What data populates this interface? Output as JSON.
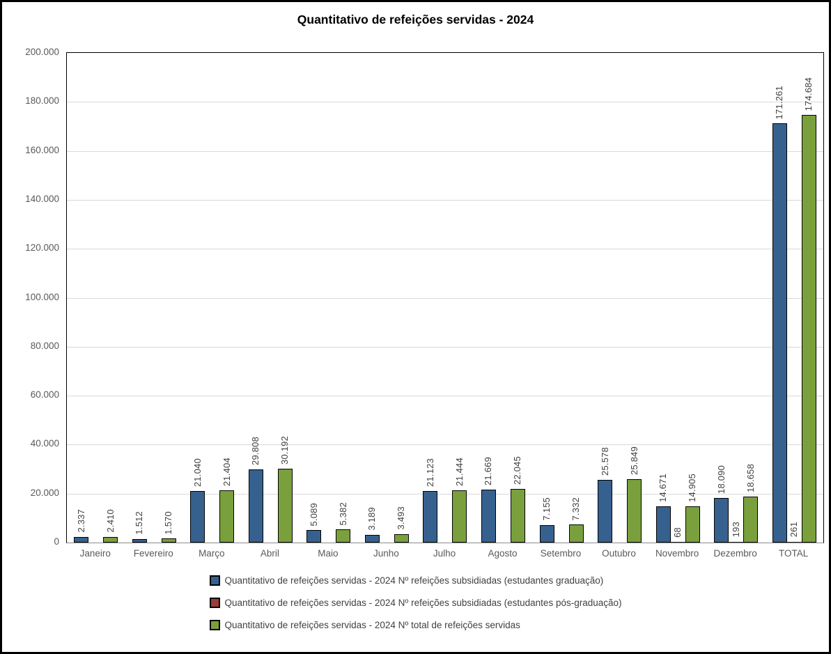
{
  "title": "Quantitativo de refeições servidas - 2024",
  "chart_data": {
    "type": "bar",
    "title": "Quantitativo de refeições servidas - 2024",
    "categories": [
      "Janeiro",
      "Fevereiro",
      "Março",
      "Abril",
      "Maio",
      "Junho",
      "Julho",
      "Agosto",
      "Setembro",
      "Outubro",
      "Novembro",
      "Dezembro",
      "TOTAL"
    ],
    "series": [
      {
        "name": "Quantitativo de refeições servidas - 2024 Nº refeições subsidiadas (estudantes graduação)",
        "color": "#36618F",
        "values": [
          2337,
          1512,
          21040,
          29808,
          5089,
          3189,
          21123,
          21669,
          7155,
          25578,
          14671,
          18090,
          171261
        ],
        "labels": [
          "2.337",
          "1.512",
          "21.040",
          "29.808",
          "5.089",
          "3.189",
          "21.123",
          "21.669",
          "7.155",
          "25.578",
          "14.671",
          "18.090",
          "171.261"
        ]
      },
      {
        "name": "Quantitativo de refeições servidas - 2024 Nº refeições subsidiadas (estudantes pós-graduação)",
        "color": "#9E3B37",
        "values": [
          null,
          null,
          null,
          null,
          null,
          null,
          null,
          null,
          null,
          null,
          68,
          193,
          261
        ],
        "labels": [
          null,
          null,
          null,
          null,
          null,
          null,
          null,
          null,
          null,
          null,
          "68",
          "193",
          "261"
        ]
      },
      {
        "name": "Quantitativo de refeições servidas - 2024 Nº total de refeições servidas",
        "color": "#7AA03D",
        "values": [
          2410,
          1570,
          21404,
          30192,
          5382,
          3493,
          21444,
          22045,
          7332,
          25849,
          14905,
          18658,
          174684
        ],
        "labels": [
          "2.410",
          "1.570",
          "21.404",
          "30.192",
          "5.382",
          "3.493",
          "21.444",
          "22.045",
          "7.332",
          "25.849",
          "14.905",
          "18.658",
          "174.684"
        ]
      }
    ],
    "ylim": [
      0,
      200000
    ],
    "ytick_step": 20000,
    "yticks": [
      "0",
      "20.000",
      "40.000",
      "60.000",
      "80.000",
      "100.000",
      "120.000",
      "140.000",
      "160.000",
      "180.000",
      "200.000"
    ],
    "grid": true,
    "legend_position": "bottom",
    "colors": {
      "bar_border": "#000000",
      "gridline": "#D9D9D9",
      "axis_text": "#595959",
      "data_label_text": "#3F3F3F",
      "plot_border": "#000000",
      "figure_border": "#000000",
      "background": "#FFFFFF"
    }
  }
}
